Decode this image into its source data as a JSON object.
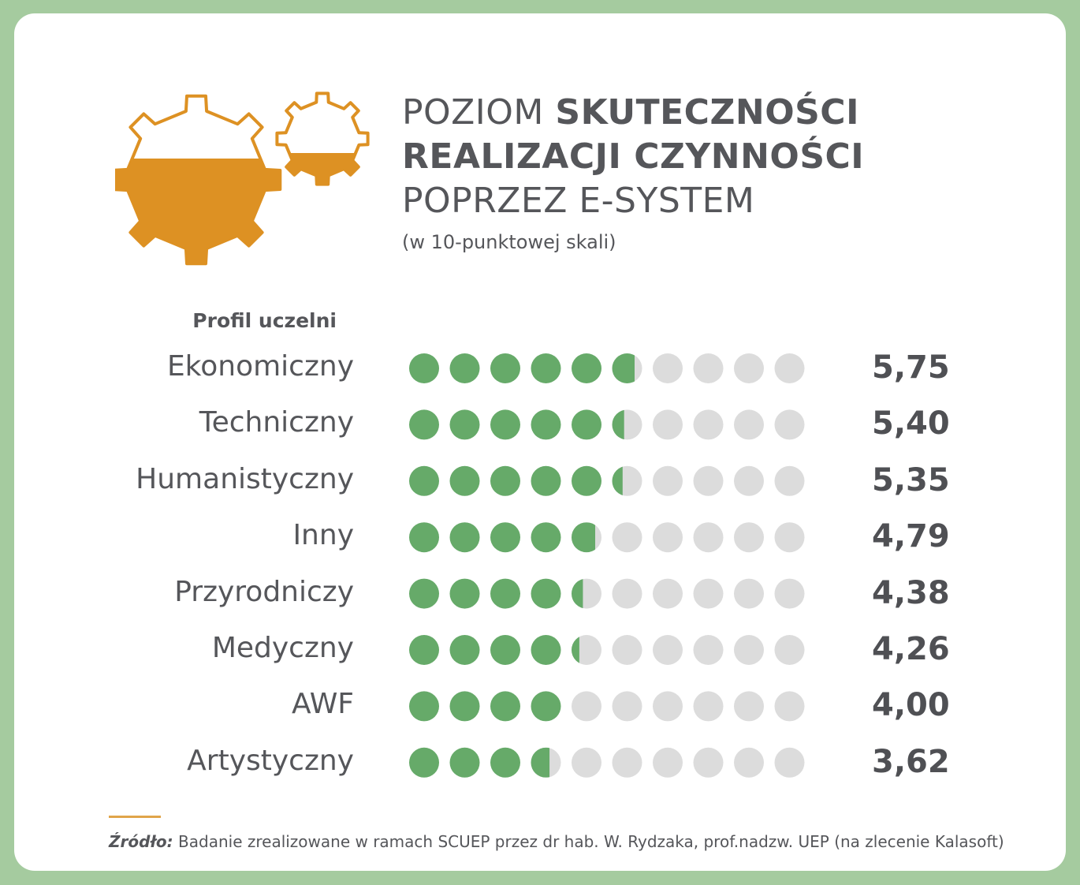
{
  "colors": {
    "frame": "#a5cb9f",
    "filled_dot": "#66aa69",
    "empty_dot": "#dcdcdc",
    "gear": "#dd9123",
    "text": "#55565a"
  },
  "icon": "gears-icon",
  "title": {
    "line1_normal": "POZIOM ",
    "line1_bold": "SKUTECZNOŚCI",
    "line2_bold": "REALIZACJI CZYNNOŚCI",
    "line3": "POPRZEZ E-SYSTEM",
    "subtitle": "(w 10-punktowej skali)"
  },
  "chart_data": {
    "type": "bar",
    "style": "dot rating (10 dots per row, partial fill)",
    "scale_max": 10,
    "category_header": "Profil uczelni",
    "categories": [
      "Ekonomiczny",
      "Techniczny",
      "Humanistyczny",
      "Inny",
      "Przyrodniczy",
      "Medyczny",
      "AWF",
      "Artystyczny"
    ],
    "values": [
      5.75,
      5.4,
      5.35,
      4.79,
      4.38,
      4.26,
      4.0,
      3.62
    ],
    "value_labels": [
      "5,75",
      "5,40",
      "5,35",
      "4,79",
      "4,38",
      "4,26",
      "4,00",
      "3,62"
    ]
  },
  "source": {
    "label": "Źródło:",
    "text": " Badanie zrealizowane w ramach SCUEP przez dr hab. W. Rydzaka, prof.nadzw. UEP (na zlecenie Kalasoft)"
  }
}
